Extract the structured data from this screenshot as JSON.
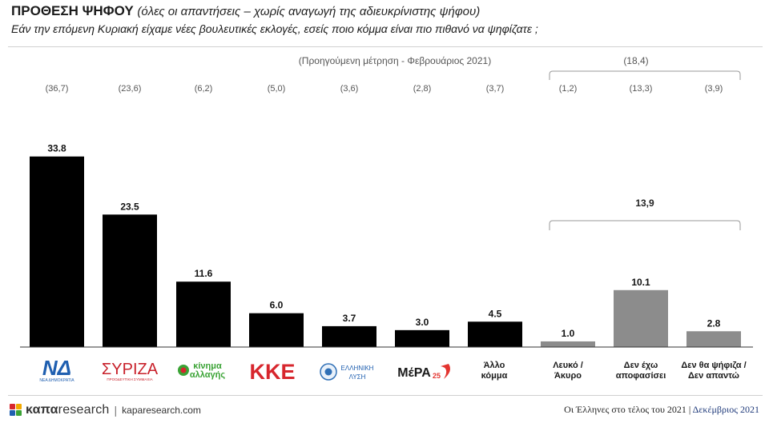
{
  "header": {
    "title_main": "ΠΡΟΘΕΣΗ ΨΗΦΟΥ",
    "title_sub": "(όλες οι απαντήσεις – χωρίς αναγωγή της αδιευκρίνιστης ψήφου)",
    "question": "Εάν την επόμενη Κυριακή είχαμε νέες βουλευτικές εκλογές, εσείς ποιο κόμμα είναι πιο πιθανό να ψηφίζατε ;"
  },
  "chart_data": {
    "type": "bar",
    "categories": [
      "ΝΔ",
      "ΣΥΡΙΖΑ",
      "Κίνημα Αλλαγής",
      "ΚΚΕ",
      "Ελληνική Λύση",
      "ΜέΡΑ25",
      "Άλλο κόμμα",
      "Λευκό / Άκυρο",
      "Δεν έχω αποφασίσει",
      "Δεν θα ψήφιζα / Δεν απαντώ"
    ],
    "values": [
      33.8,
      23.5,
      11.6,
      6.0,
      3.7,
      3.0,
      4.5,
      1.0,
      10.1,
      2.8
    ],
    "value_labels": [
      "33.8",
      "23.5",
      "11.6",
      "6.0",
      "3.7",
      "3.0",
      "4.5",
      "1.0",
      "10.1",
      "2.8"
    ],
    "previous_values": [
      "(36,7)",
      "(23,6)",
      "(6,2)",
      "(5,0)",
      "(3,6)",
      "(2,8)",
      "(3,7)",
      "(1,2)",
      "(13,3)",
      "(3,9)"
    ],
    "previous_label": "(Προηγούμενη μέτρηση - Φεβρουάριος 2021)",
    "previous_group_total": "(18,4)",
    "group_total": "13,9",
    "bar_colors": [
      "#000000",
      "#000000",
      "#000000",
      "#000000",
      "#000000",
      "#000000",
      "#000000",
      "#8c8c8c",
      "#8c8c8c",
      "#8c8c8c"
    ],
    "category_labels": {
      "nd": {
        "letters": "ΝΔ",
        "text": "ΝΕΑ ΔΗΜΟΚΡΑΤΙΑ"
      },
      "syriza": {
        "text": "ΣΥΡΙΖΑ",
        "sub": "ΠΡΟΟΔΕΥΤΙΚΗ ΣΥΜΜΑΧΙΑ"
      },
      "kinal": {
        "line1": "κίνημα",
        "line2": "αλλαγής"
      },
      "kke": {
        "text": "ΚΚΕ"
      },
      "elliniki": {
        "line1": "ΕΛΛΗΝΙΚΗ",
        "line2": "ΛΥΣΗ"
      },
      "mera": {
        "text": "ΜέΡΑ",
        "num": "25"
      },
      "other": {
        "line1": "Άλλο",
        "line2": "κόμμα"
      },
      "blank": {
        "line1": "Λευκό /",
        "line2": "Άκυρο"
      },
      "undecided": {
        "line1": "Δεν έχω",
        "line2": "αποφασίσει"
      },
      "abstain": {
        "line1": "Δεν θα ψήφιζα /",
        "line2": "Δεν απαντώ"
      }
    },
    "ylim": [
      0,
      40
    ]
  },
  "footer": {
    "brand_bold": "καπα",
    "brand_rest": "research",
    "site": "kaparesearch.com",
    "note": "Οι Έλληνες στο τέλος του 2021",
    "date": "Δεκέμβριος 2021"
  }
}
